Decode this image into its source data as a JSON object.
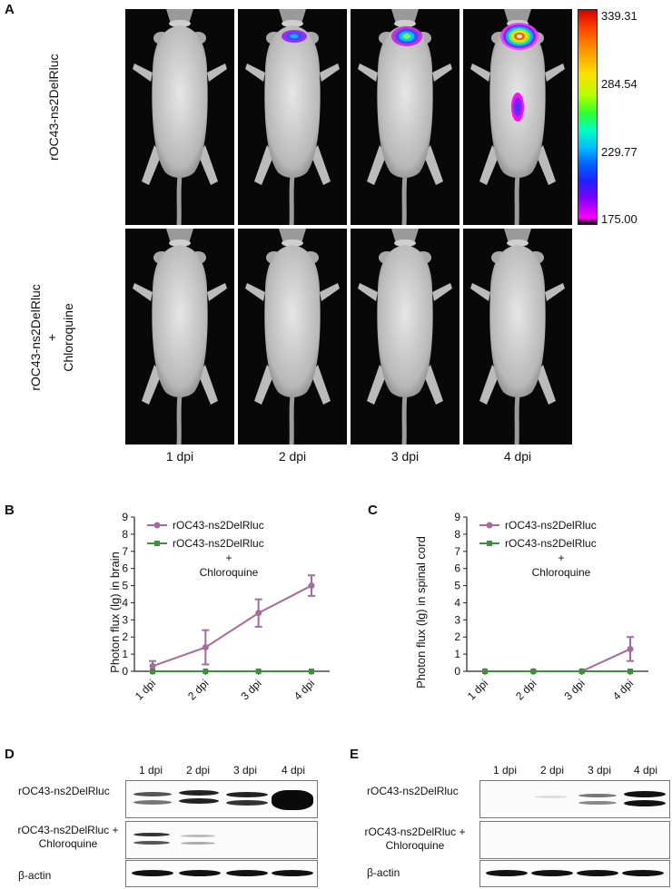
{
  "panels": {
    "a": "A",
    "b": "B",
    "c": "C",
    "d": "D",
    "e": "E"
  },
  "panel_a": {
    "row_labels": {
      "top": "rOC43-ns2DelRluc",
      "bottom_line1": "rOC43-ns2DelRluc",
      "bottom_line2": "+",
      "bottom_line3": "Chloroquine"
    },
    "dpi_labels": [
      "1 dpi",
      "2 dpi",
      "3 dpi",
      "4 dpi"
    ],
    "colorbar": {
      "max": "339.31",
      "t2": "284.54",
      "t3": "229.77",
      "min": "175.00"
    }
  },
  "chart_data": [
    {
      "type": "line",
      "panel": "B",
      "categories": [
        "1 dpi",
        "2 dpi",
        "3 dpi",
        "4 dpi"
      ],
      "ylabel": "Photon flux (lg) in brain",
      "xlabel": "",
      "ylim": [
        0,
        9
      ],
      "yticks": [
        "0",
        "1",
        "2",
        "3",
        "4",
        "5",
        "6",
        "7",
        "8",
        "9"
      ],
      "legend_position": "top-left",
      "series": [
        {
          "name": "rOC43-ns2DelRluc",
          "values": [
            0.3,
            1.4,
            3.4,
            5.0
          ],
          "errors": [
            0.3,
            1.0,
            0.8,
            0.6
          ],
          "color": "#a66b9e"
        },
        {
          "name": "rOC43-ns2DelRluc",
          "name_line2": "+",
          "name_line3": "Chloroquine",
          "values": [
            0,
            0,
            0,
            0
          ],
          "errors": [
            0,
            0,
            0,
            0
          ],
          "color": "#3f8f3f"
        }
      ]
    },
    {
      "type": "line",
      "panel": "C",
      "categories": [
        "1 dpi",
        "2 dpi",
        "3 dpi",
        "4 dpi"
      ],
      "ylabel": "Photon flux (lg) in spinal cord",
      "xlabel": "",
      "ylim": [
        0,
        9
      ],
      "yticks": [
        "0",
        "1",
        "2",
        "3",
        "4",
        "5",
        "6",
        "7",
        "8",
        "9"
      ],
      "legend_position": "top-left",
      "series": [
        {
          "name": "rOC43-ns2DelRluc",
          "values": [
            0,
            0,
            0,
            1.3
          ],
          "errors": [
            0,
            0,
            0,
            0.7
          ],
          "color": "#a66b9e"
        },
        {
          "name": "rOC43-ns2DelRluc",
          "name_line2": "+",
          "name_line3": "Chloroquine",
          "values": [
            0,
            0,
            0,
            0
          ],
          "errors": [
            0,
            0,
            0,
            0
          ],
          "color": "#3f8f3f"
        }
      ]
    }
  ],
  "panel_d": {
    "lanes": [
      "1 dpi",
      "2 dpi",
      "3 dpi",
      "4 dpi"
    ],
    "rows": {
      "r1": "rOC43-ns2DelRluc",
      "r2_line1": "rOC43-ns2DelRluc +",
      "r2_line2": "Chloroquine",
      "r3": "β-actin"
    }
  },
  "panel_e": {
    "lanes": [
      "1 dpi",
      "2 dpi",
      "3 dpi",
      "4 dpi"
    ],
    "rows": {
      "r1": "rOC43-ns2DelRluc",
      "r2_line1": "rOC43-ns2DelRluc +",
      "r2_line2": "Chloroquine",
      "r3": "β-actin"
    }
  }
}
